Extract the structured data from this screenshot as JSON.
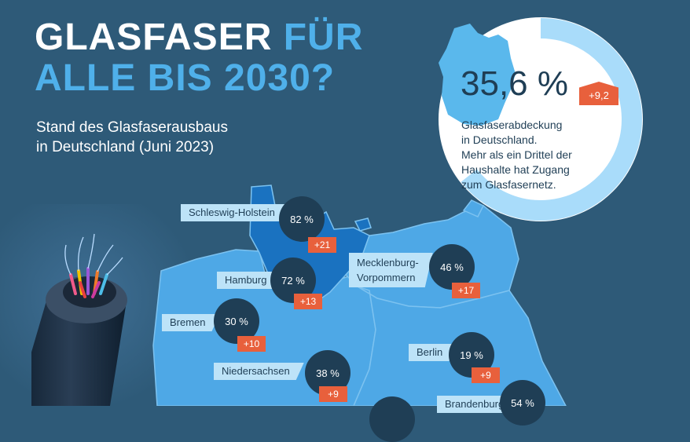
{
  "title": {
    "line1_main": "GLASFASER",
    "line1_accent": "FÜR",
    "line2": "ALLE BIS 2030?"
  },
  "subtitle": {
    "line1": "Stand des Glasfaserausbaus",
    "line2": "in Deutschland (Juni 2023)"
  },
  "national": {
    "value": "35,6 %",
    "change": "+9,2",
    "fraction": 0.356,
    "text_lines": [
      "Glasfaserabdeckung",
      "in Deutschland.",
      "Mehr als ein Drittel der",
      "Haushalte hat Zugang",
      "zum Glasfasernetz."
    ]
  },
  "states": [
    {
      "name": "Schleswig-Holstein",
      "value": "82 %",
      "change": "+21"
    },
    {
      "name": "Hamburg",
      "value": "72 %",
      "change": "+13"
    },
    {
      "name": "Mecklenburg-",
      "name2": "Vorpommern",
      "value": "46 %",
      "change": "+17"
    },
    {
      "name": "Bremen",
      "value": "30 %",
      "change": "+10"
    },
    {
      "name": "Niedersachsen",
      "value": "38 %",
      "change": "+9"
    },
    {
      "name": "Berlin",
      "value": "19 %",
      "change": "+9"
    },
    {
      "name": "Brandenburg",
      "value": "54 %",
      "change": ""
    }
  ],
  "colors": {
    "background": "#2e5a78",
    "accent": "#4fb0ea",
    "badge": "#e8603c",
    "circle": "#1f3e55",
    "map_dark": "#1a72c0",
    "map_light": "#4ea8e6"
  },
  "icons": {
    "cable": "fiber-optic-cable-icon"
  }
}
